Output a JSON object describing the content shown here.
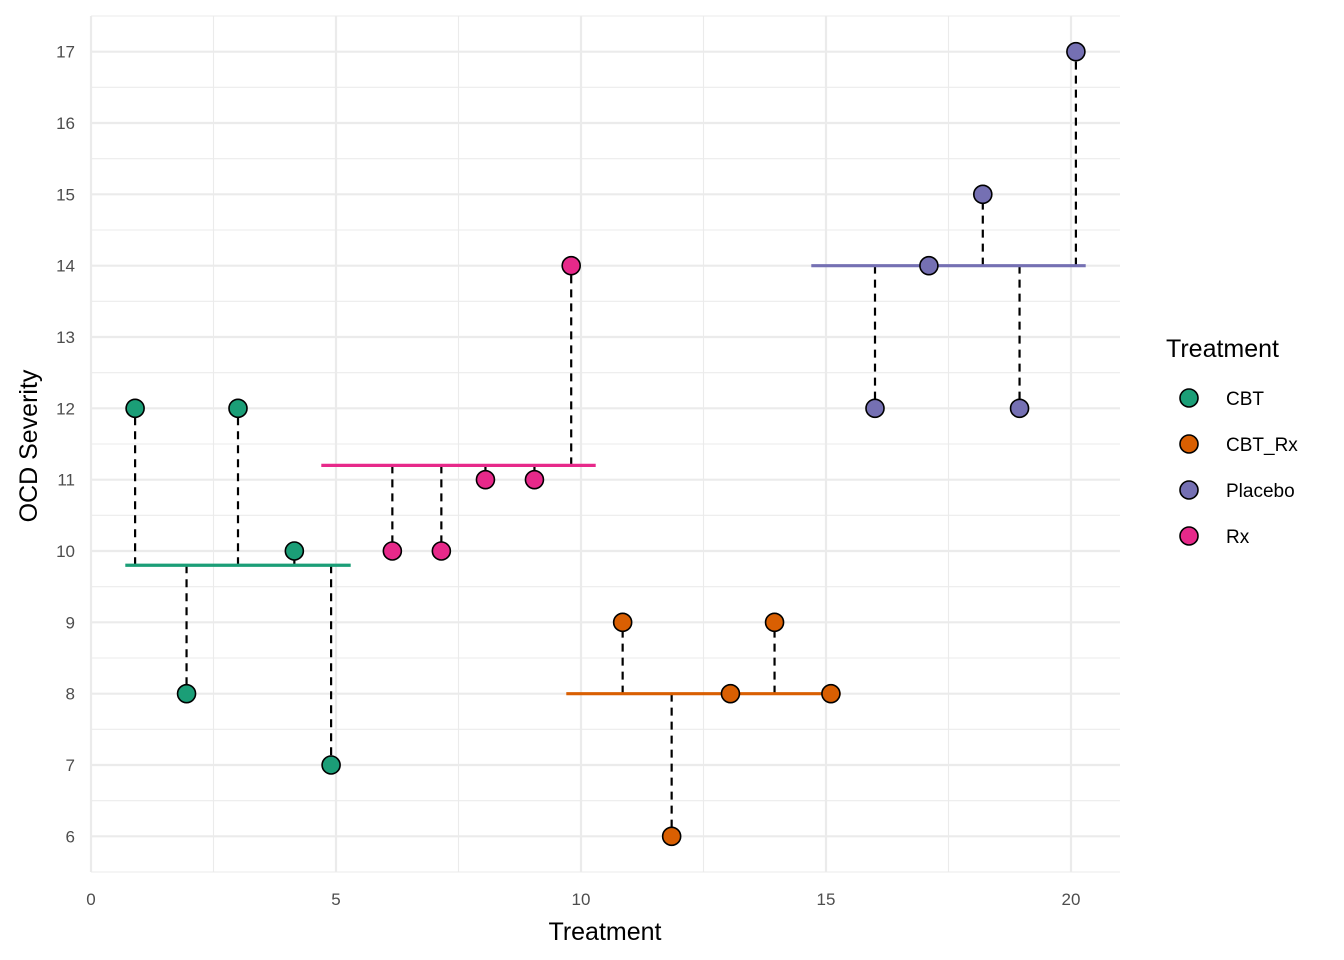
{
  "chart_data": {
    "type": "scatter",
    "title": "",
    "xlabel": "Treatment",
    "ylabel": "OCD Severity",
    "xlim": [
      0,
      21
    ],
    "ylim": [
      5.5,
      17.5
    ],
    "x_ticks": [
      "0",
      "5",
      "10",
      "15",
      "20"
    ],
    "y_ticks": [
      "6",
      "7",
      "8",
      "9",
      "10",
      "11",
      "12",
      "13",
      "14",
      "15",
      "16",
      "17"
    ],
    "grid": true,
    "legend": {
      "title": "Treatment",
      "position": "right",
      "entries": [
        "CBT",
        "CBT_Rx",
        "Placebo",
        "Rx"
      ]
    },
    "series": [
      {
        "name": "CBT",
        "color": "#1B9E77",
        "mean": 9.8,
        "mean_x_range": [
          0.7,
          5.3
        ],
        "points": [
          {
            "x": 0.9,
            "y": 12
          },
          {
            "x": 1.95,
            "y": 8
          },
          {
            "x": 3.0,
            "y": 12
          },
          {
            "x": 4.15,
            "y": 10
          },
          {
            "x": 4.9,
            "y": 7
          }
        ]
      },
      {
        "name": "Rx",
        "color": "#E7298A",
        "mean": 11.2,
        "mean_x_range": [
          4.7,
          10.3
        ],
        "points": [
          {
            "x": 6.15,
            "y": 10
          },
          {
            "x": 7.15,
            "y": 10
          },
          {
            "x": 8.05,
            "y": 11
          },
          {
            "x": 9.05,
            "y": 11
          },
          {
            "x": 9.8,
            "y": 14
          }
        ]
      },
      {
        "name": "CBT_Rx",
        "color": "#D95F02",
        "mean": 8,
        "mean_x_range": [
          9.7,
          15.3
        ],
        "points": [
          {
            "x": 10.85,
            "y": 9
          },
          {
            "x": 11.85,
            "y": 6
          },
          {
            "x": 13.05,
            "y": 8
          },
          {
            "x": 13.95,
            "y": 9
          },
          {
            "x": 15.1,
            "y": 8
          }
        ]
      },
      {
        "name": "Placebo",
        "color": "#7570B3",
        "mean": 14,
        "mean_x_range": [
          14.7,
          20.3
        ],
        "points": [
          {
            "x": 16.0,
            "y": 12
          },
          {
            "x": 17.1,
            "y": 14
          },
          {
            "x": 18.2,
            "y": 15
          },
          {
            "x": 18.95,
            "y": 12
          },
          {
            "x": 20.1,
            "y": 17
          }
        ]
      }
    ]
  }
}
